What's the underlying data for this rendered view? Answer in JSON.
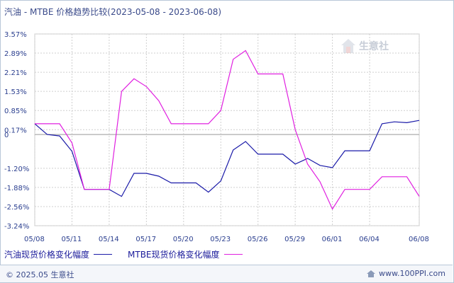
{
  "header": {
    "title": "汽油 - MTBE 价格趋势比较(2023-05-08 - 2023-06-08)"
  },
  "watermark": {
    "brand": "生意社",
    "url": "100PPI.COM"
  },
  "footer": {
    "copyright": "© 2025.05 生意社",
    "site": "www.100PPI.com"
  },
  "colors": {
    "series_gasoline": "#1a1aa8",
    "series_mtbe": "#e020e0",
    "grid": "#cfcfcf",
    "zero": "#999999"
  },
  "chart_data": {
    "type": "line",
    "title": "汽油 - MTBE 价格趋势比较(2023-05-08 - 2023-06-08)",
    "x": [
      "05/08",
      "05/09",
      "05/10",
      "05/11",
      "05/12",
      "05/13",
      "05/14",
      "05/15",
      "05/16",
      "05/17",
      "05/18",
      "05/19",
      "05/20",
      "05/21",
      "05/22",
      "05/23",
      "05/24",
      "05/25",
      "05/26",
      "05/27",
      "05/28",
      "05/29",
      "05/30",
      "05/31",
      "06/01",
      "06/02",
      "06/03",
      "06/04",
      "06/05",
      "06/06",
      "06/07",
      "06/08"
    ],
    "x_tick_labels": [
      "05/08",
      "05/11",
      "05/14",
      "05/17",
      "05/20",
      "05/23",
      "05/26",
      "05/29",
      "06/01",
      "06/04",
      "06/08"
    ],
    "y_tick_labels": [
      "3.57%",
      "2.89%",
      "2.21%",
      "1.53%",
      "0.85%",
      "0.17%",
      "0",
      "-1.20%",
      "-1.88%",
      "-2.56%",
      "-3.24%"
    ],
    "ylim": [
      -3.24,
      3.57
    ],
    "grid": true,
    "legend_position": "bottom",
    "series": [
      {
        "name": "汽油现货价格变化幅度",
        "values": [
          0.38,
          0.0,
          -0.05,
          -0.6,
          -1.95,
          -1.95,
          -1.95,
          -2.2,
          -1.38,
          -1.38,
          -1.48,
          -1.72,
          -1.72,
          -1.72,
          -2.05,
          -1.65,
          -0.55,
          -0.25,
          -0.7,
          -0.7,
          -0.7,
          -1.05,
          -0.85,
          -1.1,
          -1.18,
          -0.58,
          -0.58,
          -0.58,
          0.38,
          0.45,
          0.42,
          0.5
        ]
      },
      {
        "name": "MTBE现货价格变化幅度",
        "values": [
          0.38,
          0.38,
          0.38,
          -0.3,
          -1.95,
          -1.95,
          -1.95,
          1.53,
          1.98,
          1.7,
          1.2,
          0.38,
          0.38,
          0.38,
          0.38,
          0.85,
          2.67,
          2.98,
          2.15,
          2.15,
          2.15,
          0.17,
          -1.05,
          -1.68,
          -2.65,
          -1.95,
          -1.95,
          -1.95,
          -1.5,
          -1.5,
          -1.5,
          -2.2
        ]
      }
    ]
  }
}
